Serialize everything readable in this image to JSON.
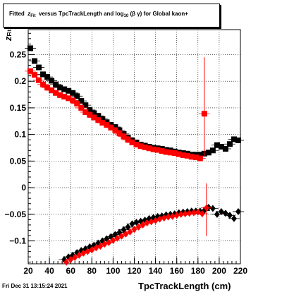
{
  "title": {
    "prefix": "Fitted",
    "z": "z",
    "z_sub": "Fit",
    "middle": "versus TpcTrackLength and log",
    "log_sub": "10",
    "bg": "(β γ)",
    "suffix": "for Global kaon+"
  },
  "timestamp": "Fri Dec 31 13:15:24 2021",
  "chart_data": {
    "type": "scatter",
    "xlabel": "TpcTrackLength (cm)",
    "ylabel": "z",
    "ylabel_sub": "Fit",
    "xlim": [
      20,
      220
    ],
    "ylim": [
      -0.143,
      0.297
    ],
    "grid": true,
    "x_ticks": [
      20,
      40,
      60,
      80,
      100,
      120,
      140,
      160,
      180,
      200,
      220
    ],
    "y_ticks": [
      -0.1,
      -0.05,
      0,
      0.05,
      0.1,
      0.15,
      0.2,
      0.25
    ],
    "y_tick_labels": [
      "−0.1",
      "−0.05",
      "0",
      "0.05",
      "0.1",
      "0.15",
      "0.2",
      "0.25"
    ],
    "series": [
      {
        "color": "#000000",
        "marker": "square",
        "x": [
          22,
          26,
          30,
          34,
          38,
          42,
          46,
          50,
          54,
          58,
          62,
          66,
          70,
          74,
          78,
          82,
          86,
          90,
          94,
          98,
          102,
          106,
          110,
          114,
          118,
          122,
          126,
          130,
          134,
          138,
          142,
          146,
          150,
          154,
          158,
          162,
          166,
          170,
          174,
          178,
          182,
          186,
          190,
          194,
          198,
          202,
          206,
          210,
          214,
          218
        ],
        "y": [
          0.262,
          0.238,
          0.226,
          0.213,
          0.208,
          0.201,
          0.194,
          0.188,
          0.185,
          0.182,
          0.178,
          0.172,
          0.163,
          0.155,
          0.146,
          0.14,
          0.135,
          0.129,
          0.123,
          0.118,
          0.114,
          0.108,
          0.101,
          0.094,
          0.089,
          0.085,
          0.081,
          0.079,
          0.077,
          0.075,
          0.074,
          0.073,
          0.071,
          0.07,
          0.068,
          0.066,
          0.065,
          0.064,
          0.062,
          0.062,
          0.062,
          0.064,
          0.066,
          0.07,
          0.08,
          0.077,
          0.073,
          0.082,
          0.091,
          0.089
        ]
      },
      {
        "color": "#ff0000",
        "marker": "square",
        "x": [
          22,
          26,
          30,
          34,
          38,
          42,
          46,
          50,
          54,
          58,
          62,
          66,
          70,
          74,
          78,
          82,
          86,
          90,
          94,
          98,
          102,
          106,
          110,
          114,
          118,
          122,
          126,
          130,
          134,
          138,
          142,
          146,
          150,
          154,
          158,
          162,
          166,
          170,
          174,
          178,
          182,
          186
        ],
        "y": [
          0.219,
          0.212,
          0.202,
          0.194,
          0.188,
          0.183,
          0.178,
          0.174,
          0.171,
          0.168,
          0.164,
          0.158,
          0.15,
          0.142,
          0.137,
          0.132,
          0.127,
          0.122,
          0.118,
          0.113,
          0.108,
          0.102,
          0.096,
          0.09,
          0.085,
          0.081,
          0.078,
          0.076,
          0.074,
          0.072,
          0.071,
          0.069,
          0.067,
          0.066,
          0.065,
          0.063,
          0.061,
          0.06,
          0.058,
          0.057,
          0.055,
          0.139
        ],
        "errors": [
          {
            "x": 186,
            "lo": 0.06,
            "hi": 0.245
          }
        ]
      },
      {
        "color": "#000000",
        "marker": "diamond",
        "x": [
          54,
          58,
          62,
          66,
          70,
          74,
          78,
          82,
          86,
          90,
          94,
          98,
          102,
          106,
          110,
          114,
          118,
          122,
          126,
          130,
          134,
          138,
          142,
          146,
          150,
          154,
          158,
          162,
          166,
          170,
          174,
          178,
          182,
          186,
          190,
          194,
          198,
          202,
          206,
          210,
          214,
          218
        ],
        "y": [
          -0.135,
          -0.13,
          -0.127,
          -0.122,
          -0.118,
          -0.115,
          -0.111,
          -0.108,
          -0.104,
          -0.1,
          -0.096,
          -0.092,
          -0.088,
          -0.084,
          -0.079,
          -0.074,
          -0.068,
          -0.065,
          -0.063,
          -0.061,
          -0.058,
          -0.056,
          -0.054,
          -0.053,
          -0.051,
          -0.05,
          -0.049,
          -0.047,
          -0.046,
          -0.045,
          -0.044,
          -0.044,
          -0.044,
          -0.043,
          -0.037,
          -0.039,
          -0.05,
          -0.045,
          -0.048,
          -0.052,
          -0.058,
          -0.045
        ]
      },
      {
        "color": "#ff0000",
        "marker": "diamond",
        "x": [
          56,
          60,
          64,
          68,
          72,
          76,
          80,
          84,
          88,
          92,
          96,
          100,
          104,
          108,
          112,
          116,
          120,
          124,
          128,
          132,
          136,
          140,
          144,
          148,
          152,
          156,
          160,
          164,
          168,
          172,
          176,
          180,
          184,
          188
        ],
        "y": [
          -0.14,
          -0.135,
          -0.131,
          -0.127,
          -0.123,
          -0.12,
          -0.117,
          -0.113,
          -0.11,
          -0.106,
          -0.103,
          -0.099,
          -0.095,
          -0.091,
          -0.087,
          -0.083,
          -0.078,
          -0.074,
          -0.07,
          -0.066,
          -0.064,
          -0.062,
          -0.059,
          -0.057,
          -0.055,
          -0.054,
          -0.052,
          -0.05,
          -0.049,
          -0.048,
          -0.047,
          -0.046,
          -0.049,
          -0.038
        ],
        "errors": [
          {
            "x": 188,
            "lo": -0.091,
            "hi": 0.008
          }
        ]
      }
    ]
  }
}
